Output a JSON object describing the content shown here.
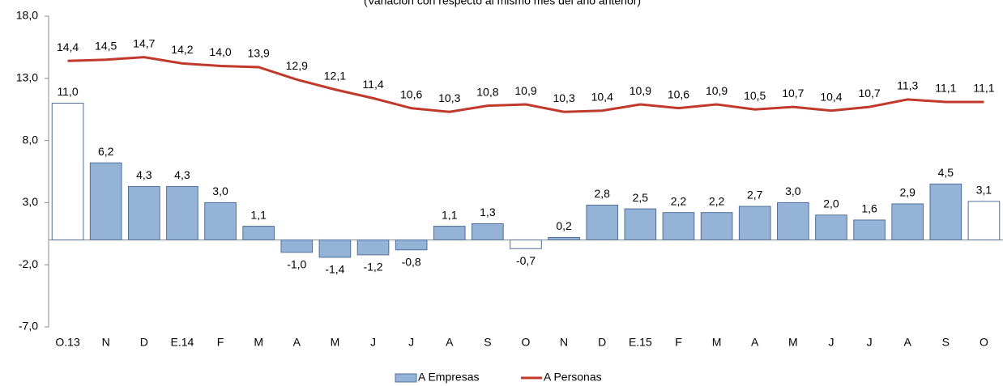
{
  "chart_data": {
    "type": "bar_line",
    "title": "(Variación con respecto al mismo mes del año anterior)",
    "categories": [
      "O.13",
      "N",
      "D",
      "E.14",
      "F",
      "M",
      "A",
      "M",
      "J",
      "J",
      "A",
      "S",
      "O",
      "N",
      "D",
      "E.15",
      "F",
      "M",
      "A",
      "M",
      "J",
      "J",
      "A",
      "S",
      "O"
    ],
    "series": [
      {
        "name": "A Empresas",
        "type": "bar",
        "color": "#95b3d7",
        "edge_color": "#4f6f9a",
        "point_colors": [
          "#ffffff",
          "#95b3d7",
          "#95b3d7",
          "#95b3d7",
          "#95b3d7",
          "#95b3d7",
          "#95b3d7",
          "#95b3d7",
          "#95b3d7",
          "#95b3d7",
          "#95b3d7",
          "#95b3d7",
          "#ffffff",
          "#95b3d7",
          "#95b3d7",
          "#95b3d7",
          "#95b3d7",
          "#95b3d7",
          "#95b3d7",
          "#95b3d7",
          "#95b3d7",
          "#95b3d7",
          "#95b3d7",
          "#95b3d7",
          "#ffffff"
        ],
        "values": [
          11.0,
          6.2,
          4.3,
          4.3,
          3.0,
          1.1,
          -1.0,
          -1.4,
          -1.2,
          -0.8,
          1.1,
          1.3,
          -0.7,
          0.2,
          2.8,
          2.5,
          2.2,
          2.2,
          2.7,
          3.0,
          2.0,
          1.6,
          2.9,
          4.5,
          3.1
        ],
        "value_labels": [
          "11,0",
          "6,2",
          "4,3",
          "4,3",
          "3,0",
          "1,1",
          "-1,0",
          "-1,4",
          "-1,2",
          "-0,8",
          "1,1",
          "1,3",
          "-0,7",
          "0,2",
          "2,8",
          "2,5",
          "2,2",
          "2,2",
          "2,7",
          "3,0",
          "2,0",
          "1,6",
          "2,9",
          "4,5",
          "3,1"
        ]
      },
      {
        "name": "A Personas",
        "type": "line",
        "color": "#c0392b",
        "values": [
          14.4,
          14.5,
          14.7,
          14.2,
          14.0,
          13.9,
          12.9,
          12.1,
          11.4,
          10.6,
          10.3,
          10.8,
          10.9,
          10.3,
          10.4,
          10.9,
          10.6,
          10.9,
          10.5,
          10.7,
          10.4,
          10.7,
          11.3,
          11.1,
          11.1
        ],
        "value_labels": [
          "14,4",
          "14,5",
          "14,7",
          "14,2",
          "14,0",
          "13,9",
          "12,9",
          "12,1",
          "11,4",
          "10,6",
          "10,3",
          "10,8",
          "10,9",
          "10,3",
          "10,4",
          "10,9",
          "10,6",
          "10,9",
          "10,5",
          "10,7",
          "10,4",
          "10,7",
          "11,3",
          "11,1",
          "11,1"
        ]
      }
    ],
    "ylim": [
      -7,
      18
    ],
    "yticks": [
      {
        "value": -7,
        "label": "-7,0"
      },
      {
        "value": -2,
        "label": "-2,0"
      },
      {
        "value": 3,
        "label": "3,0"
      },
      {
        "value": 8,
        "label": "8,0"
      },
      {
        "value": 13,
        "label": "13,0"
      },
      {
        "value": 18,
        "label": "18,0"
      }
    ],
    "grid": false,
    "legend": "bottom"
  }
}
